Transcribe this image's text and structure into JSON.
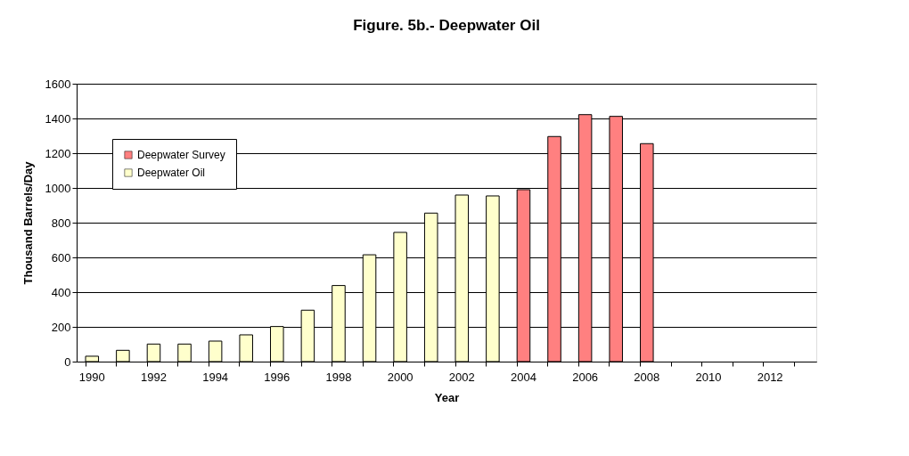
{
  "chart_data": {
    "type": "bar",
    "title": "Figure. 5b.- Deepwater Oil",
    "xlabel": "Year",
    "ylabel": "Thousand Barrels/Day",
    "categories": [
      "1990",
      null,
      "1992",
      null,
      "1994",
      null,
      "1996",
      null,
      "1998",
      null,
      "2000",
      null,
      "2002",
      null,
      "2004",
      null,
      "2006",
      null,
      "2008",
      null,
      "2010",
      null,
      "2012",
      null
    ],
    "series": [
      {
        "name": "Deepwater Survey",
        "color": "#ff8080",
        "values": [
          null,
          null,
          null,
          null,
          null,
          null,
          null,
          null,
          null,
          null,
          null,
          null,
          null,
          null,
          990,
          1296,
          1422,
          1412,
          1255,
          null,
          null,
          null,
          null,
          null
        ]
      },
      {
        "name": "Deepwater Oil",
        "color": "#ffffcc",
        "values": [
          31,
          65,
          101,
          101,
          118,
          154,
          202,
          296,
          438,
          615,
          744,
          855,
          959,
          954,
          null,
          null,
          null,
          null,
          null,
          null,
          null,
          null,
          null,
          null
        ]
      }
    ],
    "ylim": [
      0,
      1600
    ],
    "yticks": [
      0,
      200,
      400,
      600,
      800,
      1000,
      1200,
      1400,
      1600
    ],
    "grid": "y",
    "legend": "top left"
  }
}
